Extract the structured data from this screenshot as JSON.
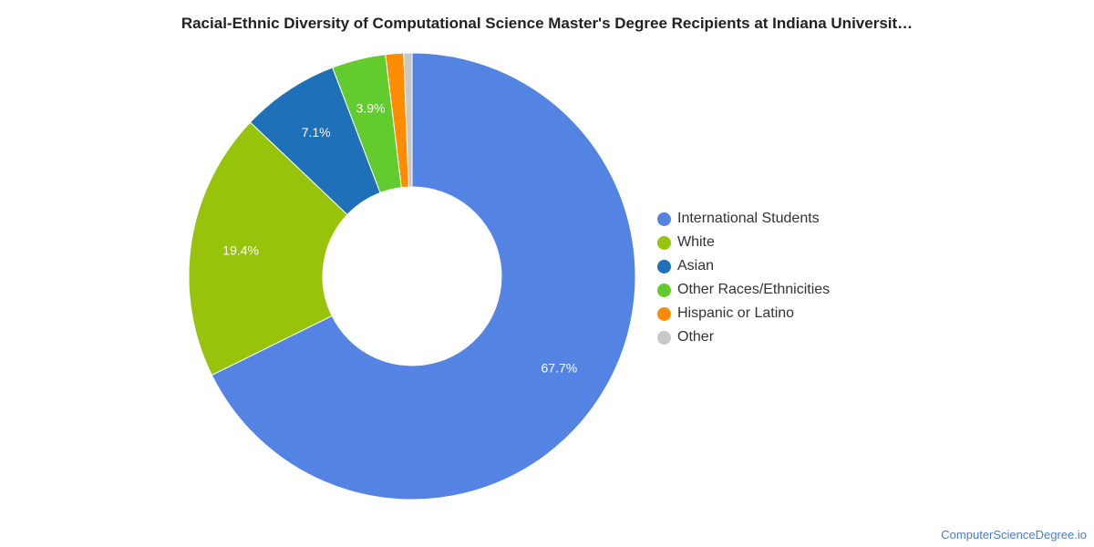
{
  "title": "Racial-Ethnic Diversity of Computational Science Master's Degree Recipients at Indiana Universit…",
  "footer": "ComputerScienceDegree.io",
  "chart_data": {
    "type": "pie",
    "donut": true,
    "legend_position": "right",
    "slices": [
      {
        "name": "International Students",
        "value": 67.7,
        "label": "67.7%",
        "color": "#5484e3"
      },
      {
        "name": "White",
        "value": 19.4,
        "label": "19.4%",
        "color": "#97c30a"
      },
      {
        "name": "Asian",
        "value": 7.1,
        "label": "7.1%",
        "color": "#1e70b8"
      },
      {
        "name": "Other Races/Ethnicities",
        "value": 3.9,
        "label": "3.9%",
        "color": "#62cb2d"
      },
      {
        "name": "Hispanic or Latino",
        "value": 1.3,
        "label": "",
        "color": "#ff8c00"
      },
      {
        "name": "Other",
        "value": 0.6,
        "label": "",
        "color": "#c8c8c8"
      }
    ]
  }
}
